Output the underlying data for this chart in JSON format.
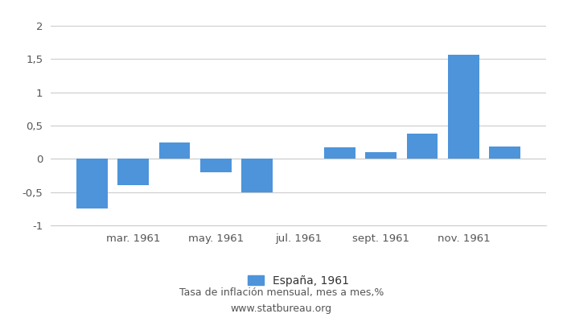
{
  "values": [
    -0.75,
    -0.4,
    0.25,
    -0.2,
    -0.5,
    0.17,
    0.1,
    0.38,
    1.57,
    0.18
  ],
  "bar_indices": [
    1,
    2,
    3,
    4,
    5,
    7,
    8,
    9,
    10,
    11
  ],
  "bar_color": "#4d94db",
  "ylim": [
    -1.0,
    2.0
  ],
  "yticks": [
    -1.0,
    -0.5,
    0.0,
    0.5,
    1.0,
    1.5,
    2.0
  ],
  "ytick_labels": [
    "-1",
    "-0,5",
    "0",
    "0,5",
    "1",
    "1,5",
    "2"
  ],
  "xtick_positions": [
    2,
    4,
    6,
    8,
    10
  ],
  "xtick_labels": [
    "mar. 1961",
    "may. 1961",
    "jul. 1961",
    "sept. 1961",
    "nov. 1961"
  ],
  "legend_label": "España, 1961",
  "footer_line1": "Tasa de inflación mensual, mes a mes,%",
  "footer_line2": "www.statbureau.org",
  "background_color": "#ffffff",
  "grid_color": "#cccccc",
  "tick_fontsize": 9.5,
  "legend_fontsize": 10,
  "footer_fontsize": 9
}
